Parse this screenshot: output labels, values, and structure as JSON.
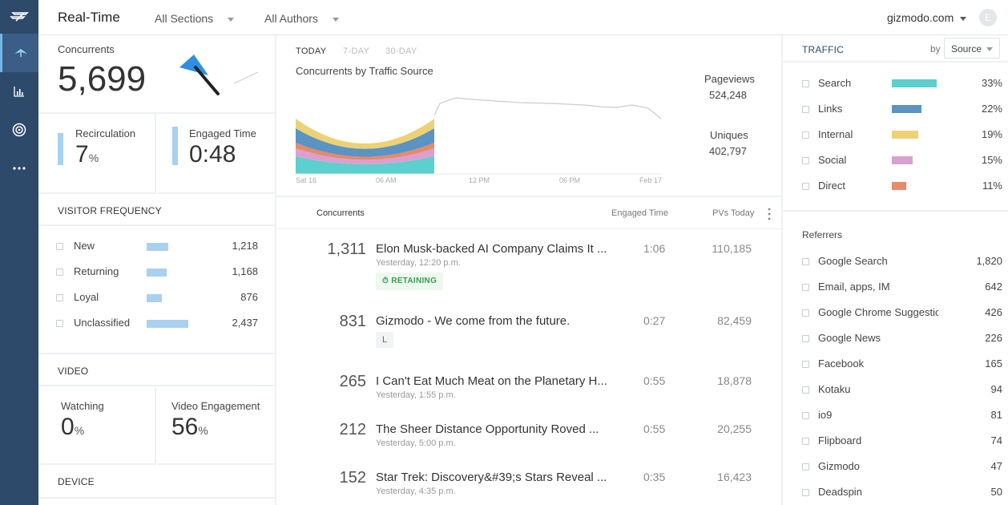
{
  "header": {
    "title": "Real-Time",
    "sections": "All Sections",
    "authors": "All Authors",
    "site": "gizmodo.com",
    "avatar": "E"
  },
  "nav": {
    "icons": [
      "logo-icon",
      "realtime-icon",
      "bar-chart-icon",
      "target-icon",
      "more-icon"
    ]
  },
  "concurrents": {
    "label": "Concurrents",
    "value": "5,699"
  },
  "recirculation": {
    "label": "Recirculation",
    "value": "7",
    "unit": "%"
  },
  "engaged_time": {
    "label": "Engaged Time",
    "value": "0:48"
  },
  "visitor_frequency": {
    "heading": "VISITOR FREQUENCY",
    "rows": [
      {
        "name": "New",
        "value": "1,218",
        "fraction": 0.5
      },
      {
        "name": "Returning",
        "value": "1,168",
        "fraction": 0.48
      },
      {
        "name": "Loyal",
        "value": "876",
        "fraction": 0.36
      },
      {
        "name": "Unclassified",
        "value": "2,437",
        "fraction": 1.0
      }
    ]
  },
  "video": {
    "heading": "VIDEO",
    "watching_label": "Watching",
    "watching_value": "0",
    "engagement_label": "Video Engagement",
    "engagement_value": "56",
    "unit": "%"
  },
  "device": {
    "heading": "DEVICE"
  },
  "chart": {
    "tabs": [
      "TODAY",
      "7-DAY",
      "30-DAY"
    ],
    "active_tab": "TODAY",
    "title": "Concurrents by Traffic Source",
    "x_labels": [
      "Sat 16",
      "06 AM",
      "12 PM",
      "06 PM",
      "Feb 17"
    ],
    "pageviews_label": "Pageviews",
    "pageviews_value": "524,248",
    "uniques_label": "Uniques",
    "uniques_value": "402,797"
  },
  "chart_data": {
    "type": "area",
    "title": "Concurrents by Traffic Source",
    "x": [
      "Sat 16",
      "06 AM",
      "12 PM",
      "06 PM",
      "Feb 17"
    ],
    "series": [
      {
        "name": "Search",
        "color": "#5ccfcf"
      },
      {
        "name": "Links",
        "color": "#5b93c2"
      },
      {
        "name": "Internal",
        "color": "#ecd274"
      },
      {
        "name": "Social",
        "color": "#d9a0d0"
      },
      {
        "name": "Direct",
        "color": "#e8896a"
      }
    ],
    "grid": false
  },
  "table": {
    "col_concurrents": "Concurrents",
    "col_engaged": "Engaged Time",
    "col_pvs": "PVs Today",
    "rows": [
      {
        "concurrents": "1,311",
        "title": "Elon Musk-backed AI Company Claims It ...",
        "time": "Yesterday, 12:20 p.m.",
        "engaged": "1:06",
        "pvs": "110,185",
        "badge": "RETAINING"
      },
      {
        "concurrents": "831",
        "title": "Gizmodo - We come from the future.",
        "time": "",
        "engaged": "0:27",
        "pvs": "82,459",
        "tag": "L"
      },
      {
        "concurrents": "265",
        "title": "I Can't Eat Much Meat on the Planetary H...",
        "time": "Yesterday, 1:55 p.m.",
        "engaged": "0:55",
        "pvs": "18,878"
      },
      {
        "concurrents": "212",
        "title": "The Sheer Distance Opportunity Roved ...",
        "time": "Yesterday, 5:00 p.m.",
        "engaged": "0:55",
        "pvs": "20,255"
      },
      {
        "concurrents": "152",
        "title": "Star Trek: Discovery&#39;s Stars Reveal ...",
        "time": "Yesterday, 4:35 p.m.",
        "engaged": "0:35",
        "pvs": "16,423"
      }
    ]
  },
  "traffic": {
    "heading": "TRAFFIC",
    "by_label": "by",
    "by_value": "Source",
    "sources": [
      {
        "name": "Search",
        "value": "33%",
        "fraction": 0.33,
        "color": "#5ccfcf"
      },
      {
        "name": "Links",
        "value": "22%",
        "fraction": 0.22,
        "color": "#5b93c2"
      },
      {
        "name": "Internal",
        "value": "19%",
        "fraction": 0.19,
        "color": "#ecd274"
      },
      {
        "name": "Social",
        "value": "15%",
        "fraction": 0.15,
        "color": "#d9a0d0"
      },
      {
        "name": "Direct",
        "value": "11%",
        "fraction": 0.11,
        "color": "#e8896a"
      }
    ],
    "referrers_heading": "Referrers",
    "referrers": [
      {
        "name": "Google Search",
        "value": "1,820"
      },
      {
        "name": "Email, apps, IM",
        "value": "642"
      },
      {
        "name": "Google Chrome Suggestic",
        "value": "426"
      },
      {
        "name": "Google News",
        "value": "226"
      },
      {
        "name": "Facebook",
        "value": "165"
      },
      {
        "name": "Kotaku",
        "value": "94"
      },
      {
        "name": "io9",
        "value": "81"
      },
      {
        "name": "Flipboard",
        "value": "74"
      },
      {
        "name": "Gizmodo",
        "value": "47"
      },
      {
        "name": "Deadspin",
        "value": "50"
      }
    ]
  }
}
